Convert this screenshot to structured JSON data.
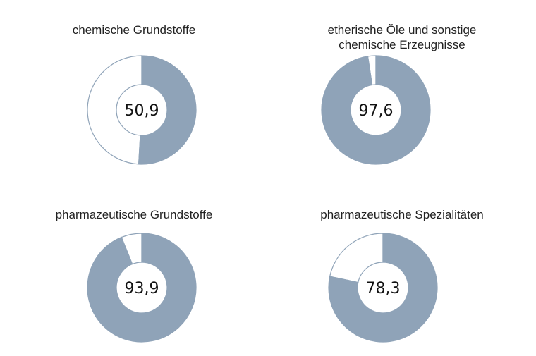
{
  "chart_data": [
    {
      "type": "pie",
      "title": "chemische Grundstoffe",
      "value": 50.9,
      "center_label": "50,9",
      "values": [
        50.9,
        49.1
      ],
      "max": 100
    },
    {
      "type": "pie",
      "title": "etherische Öle und sonstige\nchemische Erzeugnisse",
      "value": 97.6,
      "center_label": "97,6",
      "values": [
        97.6,
        2.4
      ],
      "max": 100
    },
    {
      "type": "pie",
      "title": "pharmazeutische Grundstoffe",
      "value": 93.9,
      "center_label": "93,9",
      "values": [
        93.9,
        6.1
      ],
      "max": 100
    },
    {
      "type": "pie",
      "title": "pharmazeutische Spezialitäten",
      "value": 78.3,
      "center_label": "78,3",
      "values": [
        78.3,
        21.7
      ],
      "max": 100
    }
  ],
  "colors": {
    "fill": "#8fa3b8",
    "remainder": "#ffffff",
    "stroke": "#8fa3b8"
  }
}
